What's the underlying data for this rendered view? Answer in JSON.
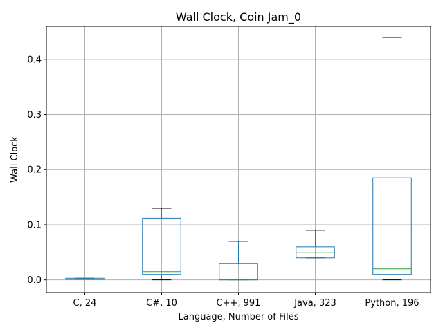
{
  "chart_data": {
    "type": "box",
    "title": "Wall Clock, Coin Jam_0",
    "xlabel": "Language, Number of Files",
    "ylabel": "Wall Clock",
    "ylim": [
      -0.023,
      0.46
    ],
    "yticks": [
      0.0,
      0.1,
      0.2,
      0.3,
      0.4
    ],
    "ytick_labels": [
      "0.0",
      "0.1",
      "0.2",
      "0.3",
      "0.4"
    ],
    "grid": true,
    "categories": [
      "C, 24",
      "C#, 10",
      "C++, 991",
      "Java, 323",
      "Python, 196"
    ],
    "boxes": [
      {
        "category": "C, 24",
        "whislo": 0.001,
        "q1": 0.001,
        "med": 0.001,
        "q3": 0.003,
        "whishi": 0.003
      },
      {
        "category": "C#, 10",
        "whislo": 0.0,
        "q1": 0.01,
        "med": 0.015,
        "q3": 0.112,
        "whishi": 0.13
      },
      {
        "category": "C++, 991",
        "whislo": 0.0,
        "q1": 0.0,
        "med": 0.0,
        "q3": 0.03,
        "whishi": 0.07
      },
      {
        "category": "Java, 323",
        "whislo": 0.04,
        "q1": 0.04,
        "med": 0.05,
        "q3": 0.06,
        "whishi": 0.09
      },
      {
        "category": "Python, 196",
        "whislo": 0.0,
        "q1": 0.01,
        "med": 0.02,
        "q3": 0.185,
        "whishi": 0.44
      }
    ],
    "colors": {
      "box": "#1f77b4",
      "median": "#2ca02c",
      "whisker_cap": "#000000",
      "grid": "#b0b0b0"
    }
  }
}
